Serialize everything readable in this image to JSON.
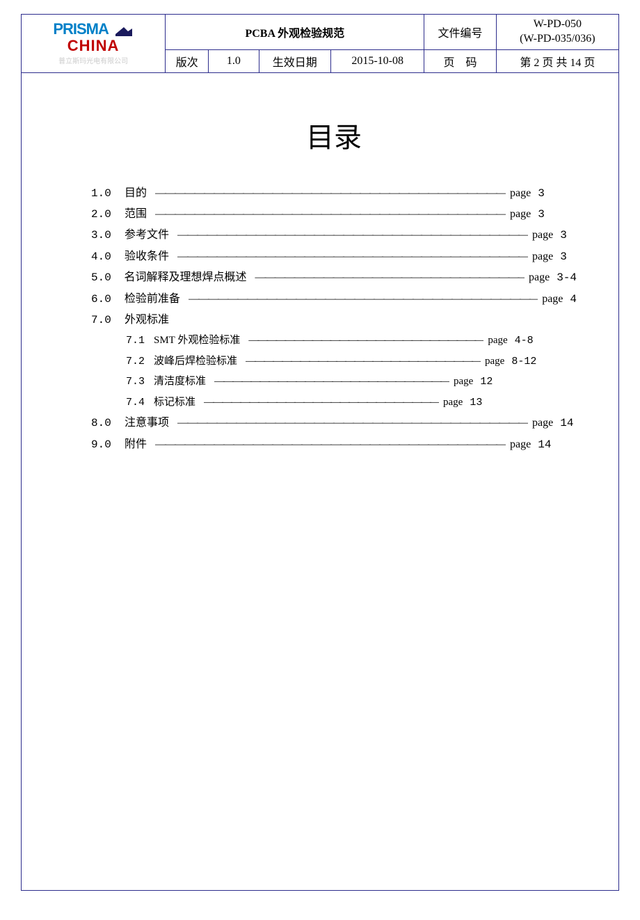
{
  "header": {
    "logo": {
      "line1": "PRISMA",
      "line2": "CHINA",
      "subtitle": "普立斯玛光电有限公司"
    },
    "title": "PCBA 外观检验规范",
    "doc_no_label": "文件编号",
    "doc_no_1": "W-PD-050",
    "doc_no_2": "(W-PD-035/036)",
    "version_label": "版次",
    "version": "1.0",
    "effective_label": "生效日期",
    "effective_date": "2015-10-08",
    "page_label": "页　码",
    "page_value": "第 2 页 共 14 页"
  },
  "toc_title": "目录",
  "toc": [
    {
      "num": "1.0",
      "label": "目的",
      "dashes": "————————————————————————————————————",
      "page_word": "page",
      "page": "3"
    },
    {
      "num": "2.0",
      "label": "范围",
      "dashes": "————————————————————————————————————",
      "page_word": "page",
      "page": "3"
    },
    {
      "num": "3.0",
      "label": "参考文件",
      "dashes": "————————————————————————————————————",
      "page_word": "page",
      "page": "3"
    },
    {
      "num": "4.0",
      "label": "验收条件",
      "dashes": "————————————————————————————————————",
      "page_word": "page",
      "page": "3"
    },
    {
      "num": "5.0",
      "label": "名词解释及理想焊点概述",
      "dashes": "————————————————————————————",
      "page_word": "page",
      "page": "3-4"
    },
    {
      "num": "6.0",
      "label": "检验前准备",
      "dashes": "————————————————————————————————————",
      "page_word": "page",
      "page": "4"
    },
    {
      "num": "7.0",
      "label": "外观标准",
      "dashes": "",
      "page_word": "",
      "page": ""
    },
    {
      "num": "8.0",
      "label": "注意事项",
      "dashes": "————————————————————————————————————",
      "page_word": "page",
      "page": "14"
    },
    {
      "num": "9.0",
      "label": "附件",
      "dashes": "————————————————————————————————————",
      "page_word": "page",
      "page": "14"
    }
  ],
  "toc_sub": [
    {
      "num": "7.1",
      "label": "SMT 外观检验标准",
      "dashes": "——————————————————————————",
      "page_word": "page",
      "page": "4-8"
    },
    {
      "num": "7.2",
      "label": "波峰后焊检验标准",
      "dashes": "——————————————————————————",
      "page_word": "page",
      "page": "8-12"
    },
    {
      "num": "7.3",
      "label": "清洁度标准",
      "dashes": "——————————————————————————",
      "page_word": "page",
      "page": "12"
    },
    {
      "num": "7.4",
      "label": "标记标准",
      "dashes": "——————————————————————————",
      "page_word": "page",
      "page": "13"
    }
  ],
  "colors": {
    "border": "#2c2c8c",
    "logo_blue": "#0080c8",
    "logo_red": "#c00000",
    "logo_dark": "#1a1a5c",
    "text": "#000000",
    "sub_gray": "#cccccc"
  }
}
